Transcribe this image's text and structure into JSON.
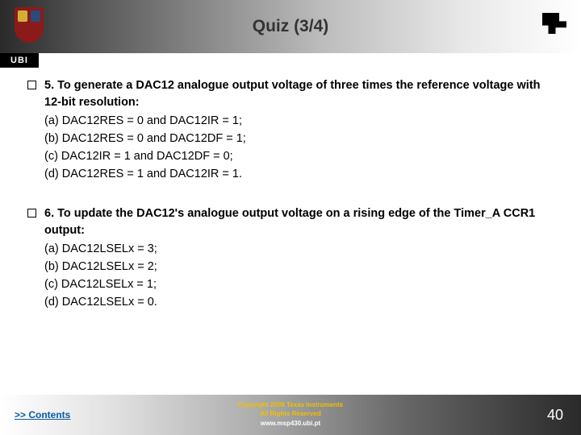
{
  "header": {
    "title": "Quiz (3/4)",
    "ubi_label": "UBI"
  },
  "questions": [
    {
      "stem": "5. To generate a DAC12 analogue output voltage of three times the reference voltage with 12-bit resolution:",
      "options": [
        "(a) DAC12RES = 0 and DAC12IR = 1;",
        "(b) DAC12RES = 0 and DAC12DF = 1;",
        "(c) DAC12IR = 1 and DAC12DF = 0;",
        "(d) DAC12RES = 1 and DAC12IR = 1."
      ]
    },
    {
      "stem": "6. To update the DAC12's analogue output voltage on a rising edge of the Timer_A CCR1 output:",
      "options": [
        "(a) DAC12LSELx = 3;",
        "(b) DAC12LSELx = 2;",
        "(c) DAC12LSELx = 1;",
        "(d) DAC12LSELx = 0."
      ]
    }
  ],
  "footer": {
    "contents_link": ">> Contents",
    "copyright_line1": "Copyright 2009 Texas Instruments",
    "copyright_line2": "All Rights Reserved",
    "url": "www.msp430.ubi.pt",
    "slide_number": "40"
  }
}
